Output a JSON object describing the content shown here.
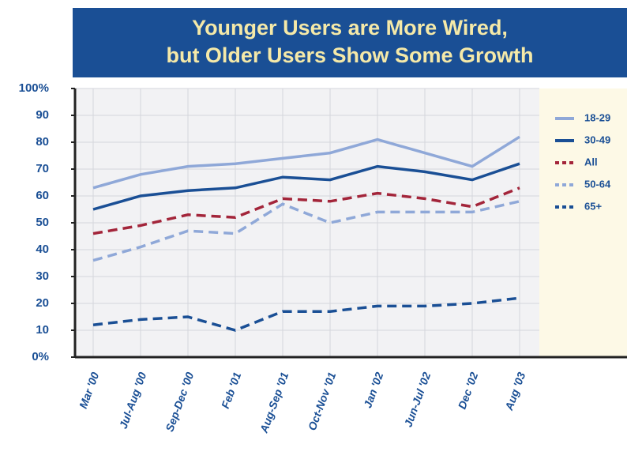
{
  "chart_data": {
    "type": "line",
    "title": "Younger Users are More Wired,",
    "subtitle": "but Older Users Show Some Growth",
    "categories": [
      "Mar '00",
      "Jul-Aug '00",
      "Sep-Dec '00",
      "Feb '01",
      "Aug-Sep '01",
      "Oct-Nov '01",
      "Jan '02",
      "Jun-Jul '02",
      "Dec '02",
      "Aug '03"
    ],
    "series": [
      {
        "name": "18-29",
        "color": "#8fa8d8",
        "dash": "solid",
        "values": [
          63,
          68,
          71,
          72,
          74,
          76,
          81,
          76,
          71,
          82
        ]
      },
      {
        "name": "30-49",
        "color": "#1a4f95",
        "dash": "solid",
        "values": [
          55,
          60,
          62,
          63,
          67,
          66,
          71,
          69,
          66,
          72
        ]
      },
      {
        "name": "All",
        "color": "#a3253a",
        "dash": "dashed",
        "values": [
          46,
          49,
          53,
          52,
          59,
          58,
          61,
          59,
          56,
          63
        ]
      },
      {
        "name": "50-64",
        "color": "#8fa8d8",
        "dash": "dashed",
        "values": [
          36,
          41,
          47,
          46,
          57,
          50,
          54,
          54,
          54,
          58
        ]
      },
      {
        "name": "65+",
        "color": "#1a4f95",
        "dash": "dashed",
        "values": [
          12,
          14,
          15,
          10,
          17,
          17,
          19,
          19,
          20,
          22
        ]
      }
    ],
    "ylim": [
      0,
      100
    ],
    "yticks": [
      {
        "value": 0,
        "label": "0%"
      },
      10,
      20,
      30,
      40,
      50,
      60,
      70,
      80,
      90,
      {
        "value": 100,
        "label": "100%"
      }
    ],
    "grid": true,
    "legend": "right"
  }
}
